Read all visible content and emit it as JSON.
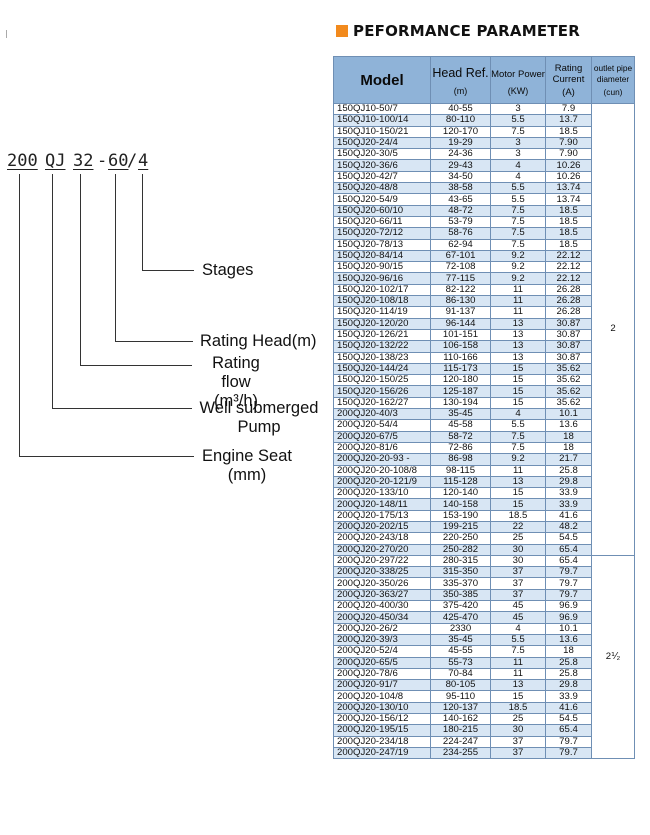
{
  "heading": {
    "text": "PEFORMANCE PARAMETER",
    "accent_color": "#f28a1d"
  },
  "diagram": {
    "code_parts": [
      "200",
      "QJ",
      "32",
      "-",
      "60",
      "/",
      "4"
    ],
    "labels": {
      "stages": "Stages",
      "rating_head": "Rating Head(m)",
      "rating_flow_1": "Rating flow",
      "rating_flow_2": "(m³/h)",
      "well_pump_1": "Well submerged",
      "well_pump_2": "Pump",
      "engine_seat_1": "Engine Seat",
      "engine_seat_2": "(mm)"
    }
  },
  "table": {
    "header_color": "#8fb3d8",
    "stripe_color": "#d8e6f4",
    "headers": {
      "model": "Model",
      "head_ref": "Head Ref.",
      "head_ref_unit": "(m)",
      "motor_power": "Motor Power",
      "motor_power_unit": "(KW)",
      "rating_current_1": "Rating",
      "rating_current_2": "Current",
      "rating_current_unit": "(A)",
      "outlet_1": "outlet pipe",
      "outlet_2": "diameter",
      "outlet_unit": "(cun)"
    },
    "outlet_groups": [
      "2",
      "2⅟₂"
    ],
    "rows": [
      [
        "150QJ10-50/7",
        "40-55",
        "3",
        "7.9"
      ],
      [
        "150QJ10-100/14",
        "80-110",
        "5.5",
        "13.7"
      ],
      [
        "150QJ10-150/21",
        "120-170",
        "7.5",
        "18.5"
      ],
      [
        "150QJ20-24/4",
        "19-29",
        "3",
        "7.90"
      ],
      [
        "150QJ20-30/5",
        "24-36",
        "3",
        "7.90"
      ],
      [
        "150QJ20-36/6",
        "29-43",
        "4",
        "10.26"
      ],
      [
        "150QJ20-42/7",
        "34-50",
        "4",
        "10.26"
      ],
      [
        "150QJ20-48/8",
        "38-58",
        "5.5",
        "13.74"
      ],
      [
        "150QJ20-54/9",
        "43-65",
        "5.5",
        "13.74"
      ],
      [
        "150QJ20-60/10",
        "48-72",
        "7.5",
        "18.5"
      ],
      [
        "150QJ20-66/11",
        "53-79",
        "7.5",
        "18.5"
      ],
      [
        "150QJ20-72/12",
        "58-76",
        "7.5",
        "18.5"
      ],
      [
        "150QJ20-78/13",
        "62-94",
        "7.5",
        "18.5"
      ],
      [
        "150QJ20-84/14",
        "67-101",
        "9.2",
        "22.12"
      ],
      [
        "150QJ20-90/15",
        "72-108",
        "9.2",
        "22.12"
      ],
      [
        "150QJ20-96/16",
        "77-115",
        "9.2",
        "22.12"
      ],
      [
        "150QJ20-102/17",
        "82-122",
        "11",
        "26.28"
      ],
      [
        "150QJ20-108/18",
        "86-130",
        "11",
        "26.28"
      ],
      [
        "150QJ20-114/19",
        "91-137",
        "11",
        "26.28"
      ],
      [
        "150QJ20-120/20",
        "96-144",
        "13",
        "30.87"
      ],
      [
        "150QJ20-126/21",
        "101-151",
        "13",
        "30.87"
      ],
      [
        "150QJ20-132/22",
        "106-158",
        "13",
        "30.87"
      ],
      [
        "150QJ20-138/23",
        "110-166",
        "13",
        "30.87"
      ],
      [
        "150QJ20-144/24",
        "115-173",
        "15",
        "35.62"
      ],
      [
        "150QJ20-150/25",
        "120-180",
        "15",
        "35.62"
      ],
      [
        "150QJ20-156/26",
        "125-187",
        "15",
        "35.62"
      ],
      [
        "150QJ20-162/27",
        "130-194",
        "15",
        "35.62"
      ],
      [
        "200QJ20-40/3",
        "35-45",
        "4",
        "10.1"
      ],
      [
        "200QJ20-54/4",
        "45-58",
        "5.5",
        "13.6"
      ],
      [
        "200QJ20-67/5",
        "58-72",
        "7.5",
        "18"
      ],
      [
        "200QJ20-81/6",
        "72-86",
        "7.5",
        "18"
      ],
      [
        "200QJ20-20-93 -",
        "86-98",
        "9.2",
        "21.7"
      ],
      [
        "200QJ20-20-108/8",
        "98-115",
        "11",
        "25.8"
      ],
      [
        "200QJ20-20-121/9",
        "115-128",
        "13",
        "29.8"
      ],
      [
        "200QJ20-133/10",
        "120-140",
        "15",
        "33.9"
      ],
      [
        "200QJ20-148/11",
        "140-158",
        "15",
        "33.9"
      ],
      [
        "200QJ20-175/13",
        "153-190",
        "18.5",
        "41.6"
      ],
      [
        "200QJ20-202/15",
        "199-215",
        "22",
        "48.2"
      ],
      [
        "200QJ20-243/18",
        "220-250",
        "25",
        "54.5"
      ],
      [
        "200QJ20-270/20",
        "250-282",
        "30",
        "65.4"
      ],
      [
        "200QJ20-297/22",
        "280-315",
        "30",
        "65.4"
      ],
      [
        "200QJ20-338/25",
        "315-350",
        "37",
        "79.7"
      ],
      [
        "200QJ20-350/26",
        "335-370",
        "37",
        "79.7"
      ],
      [
        "200QJ20-363/27",
        "350-385",
        "37",
        "79.7"
      ],
      [
        "200QJ20-400/30",
        "375-420",
        "45",
        "96.9"
      ],
      [
        "200QJ20-450/34",
        "425-470",
        "45",
        "96.9"
      ],
      [
        "200QJ20-26/2",
        "2330",
        "4",
        "10.1"
      ],
      [
        "200QJ20-39/3",
        "35-45",
        "5.5",
        "13.6"
      ],
      [
        "200QJ20-52/4",
        "45-55",
        "7.5",
        "18"
      ],
      [
        "200QJ20-65/5",
        "55-73",
        "11",
        "25.8"
      ],
      [
        "200QJ20-78/6",
        "70-84",
        "11",
        "25.8"
      ],
      [
        "200QJ20-91/7",
        "80-105",
        "13",
        "29.8"
      ],
      [
        "200QJ20-104/8",
        "95-110",
        "15",
        "33.9"
      ],
      [
        "200QJ20-130/10",
        "120-137",
        "18.5",
        "41.6"
      ],
      [
        "200QJ20-156/12",
        "140-162",
        "25",
        "54.5"
      ],
      [
        "200QJ20-195/15",
        "180-215",
        "30",
        "65.4"
      ],
      [
        "200QJ20-234/18",
        "224-247",
        "37",
        "79.7"
      ],
      [
        "200QJ20-247/19",
        "234-255",
        "37",
        "79.7"
      ]
    ],
    "group_split": 40
  }
}
